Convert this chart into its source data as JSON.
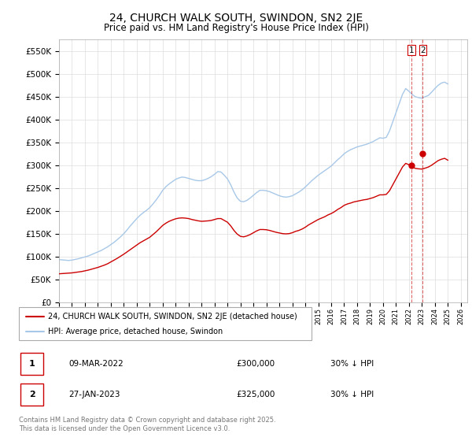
{
  "title": "24, CHURCH WALK SOUTH, SWINDON, SN2 2JE",
  "subtitle": "Price paid vs. HM Land Registry's House Price Index (HPI)",
  "title_fontsize": 10,
  "subtitle_fontsize": 8.5,
  "background_color": "#ffffff",
  "grid_color": "#dddddd",
  "hpi_color": "#a8c8e8",
  "price_color": "#cc0000",
  "vline_color": "#cc0000",
  "ylim": [
    0,
    575000
  ],
  "yticks": [
    0,
    50000,
    100000,
    150000,
    200000,
    250000,
    300000,
    350000,
    400000,
    450000,
    500000,
    550000
  ],
  "ytick_labels": [
    "£0",
    "£50K",
    "£100K",
    "£150K",
    "£200K",
    "£250K",
    "£300K",
    "£350K",
    "£400K",
    "£450K",
    "£500K",
    "£550K"
  ],
  "xmin": 1995.0,
  "xmax": 2026.5,
  "xticks": [
    1995,
    1996,
    1997,
    1998,
    1999,
    2000,
    2001,
    2002,
    2003,
    2004,
    2005,
    2006,
    2007,
    2008,
    2009,
    2010,
    2011,
    2012,
    2013,
    2014,
    2015,
    2016,
    2017,
    2018,
    2019,
    2020,
    2021,
    2022,
    2023,
    2024,
    2025,
    2026
  ],
  "transaction1_x": 2022.185,
  "transaction1_y": 300000,
  "transaction1_label": "1",
  "transaction2_x": 2023.07,
  "transaction2_y": 325000,
  "transaction2_label": "2",
  "legend_entries": [
    "24, CHURCH WALK SOUTH, SWINDON, SN2 2JE (detached house)",
    "HPI: Average price, detached house, Swindon"
  ],
  "table_rows": [
    {
      "num": "1",
      "date": "09-MAR-2022",
      "price": "£300,000",
      "note": "30% ↓ HPI"
    },
    {
      "num": "2",
      "date": "27-JAN-2023",
      "price": "£325,000",
      "note": "30% ↓ HPI"
    }
  ],
  "footer": "Contains HM Land Registry data © Crown copyright and database right 2025.\nThis data is licensed under the Open Government Licence v3.0.",
  "hpi_x": [
    1995.0,
    1995.25,
    1995.5,
    1995.75,
    1996.0,
    1996.25,
    1996.5,
    1996.75,
    1997.0,
    1997.25,
    1997.5,
    1997.75,
    1998.0,
    1998.25,
    1998.5,
    1998.75,
    1999.0,
    1999.25,
    1999.5,
    1999.75,
    2000.0,
    2000.25,
    2000.5,
    2000.75,
    2001.0,
    2001.25,
    2001.5,
    2001.75,
    2002.0,
    2002.25,
    2002.5,
    2002.75,
    2003.0,
    2003.25,
    2003.5,
    2003.75,
    2004.0,
    2004.25,
    2004.5,
    2004.75,
    2005.0,
    2005.25,
    2005.5,
    2005.75,
    2006.0,
    2006.25,
    2006.5,
    2006.75,
    2007.0,
    2007.25,
    2007.5,
    2007.75,
    2008.0,
    2008.25,
    2008.5,
    2008.75,
    2009.0,
    2009.25,
    2009.5,
    2009.75,
    2010.0,
    2010.25,
    2010.5,
    2010.75,
    2011.0,
    2011.25,
    2011.5,
    2011.75,
    2012.0,
    2012.25,
    2012.5,
    2012.75,
    2013.0,
    2013.25,
    2013.5,
    2013.75,
    2014.0,
    2014.25,
    2014.5,
    2014.75,
    2015.0,
    2015.25,
    2015.5,
    2015.75,
    2016.0,
    2016.25,
    2016.5,
    2016.75,
    2017.0,
    2017.25,
    2017.5,
    2017.75,
    2018.0,
    2018.25,
    2018.5,
    2018.75,
    2019.0,
    2019.25,
    2019.5,
    2019.75,
    2020.0,
    2020.25,
    2020.5,
    2020.75,
    2021.0,
    2021.25,
    2021.5,
    2021.75,
    2022.0,
    2022.25,
    2022.5,
    2022.75,
    2023.0,
    2023.25,
    2023.5,
    2023.75,
    2024.0,
    2024.25,
    2024.5,
    2024.75,
    2025.0
  ],
  "hpi_y": [
    93000,
    92500,
    91800,
    91200,
    92000,
    93500,
    95000,
    97000,
    99000,
    101000,
    104000,
    107000,
    110000,
    113000,
    117000,
    121000,
    126000,
    131000,
    137000,
    143000,
    150000,
    158000,
    167000,
    175000,
    183000,
    190000,
    196000,
    201000,
    207000,
    215000,
    224000,
    234000,
    245000,
    253000,
    259000,
    264000,
    269000,
    272000,
    274000,
    273000,
    271000,
    269000,
    267000,
    266000,
    266000,
    268000,
    271000,
    275000,
    280000,
    286000,
    285000,
    278000,
    270000,
    257000,
    241000,
    228000,
    221000,
    220000,
    223000,
    228000,
    234000,
    240000,
    245000,
    245000,
    244000,
    242000,
    239000,
    236000,
    233000,
    231000,
    230000,
    231000,
    233000,
    237000,
    241000,
    246000,
    252000,
    259000,
    266000,
    272000,
    278000,
    283000,
    288000,
    293000,
    298000,
    305000,
    312000,
    318000,
    325000,
    330000,
    334000,
    337000,
    340000,
    342000,
    344000,
    346000,
    349000,
    352000,
    356000,
    360000,
    359000,
    361000,
    375000,
    395000,
    415000,
    435000,
    455000,
    468000,
    462000,
    455000,
    450000,
    448000,
    447000,
    450000,
    453000,
    460000,
    468000,
    475000,
    480000,
    482000,
    478000
  ],
  "price_x": [
    1995.0,
    1995.25,
    1995.5,
    1995.75,
    1996.0,
    1996.25,
    1996.5,
    1996.75,
    1997.0,
    1997.25,
    1997.5,
    1997.75,
    1998.0,
    1998.25,
    1998.5,
    1998.75,
    1999.0,
    1999.25,
    1999.5,
    1999.75,
    2000.0,
    2000.25,
    2000.5,
    2000.75,
    2001.0,
    2001.25,
    2001.5,
    2001.75,
    2002.0,
    2002.25,
    2002.5,
    2002.75,
    2003.0,
    2003.25,
    2003.5,
    2003.75,
    2004.0,
    2004.25,
    2004.5,
    2004.75,
    2005.0,
    2005.25,
    2005.5,
    2005.75,
    2006.0,
    2006.25,
    2006.5,
    2006.75,
    2007.0,
    2007.25,
    2007.5,
    2007.75,
    2008.0,
    2008.25,
    2008.5,
    2008.75,
    2009.0,
    2009.25,
    2009.5,
    2009.75,
    2010.0,
    2010.25,
    2010.5,
    2010.75,
    2011.0,
    2011.25,
    2011.5,
    2011.75,
    2012.0,
    2012.25,
    2012.5,
    2012.75,
    2013.0,
    2013.25,
    2013.5,
    2013.75,
    2014.0,
    2014.25,
    2014.5,
    2014.75,
    2015.0,
    2015.25,
    2015.5,
    2015.75,
    2016.0,
    2016.25,
    2016.5,
    2016.75,
    2017.0,
    2017.25,
    2017.5,
    2017.75,
    2018.0,
    2018.25,
    2018.5,
    2018.75,
    2019.0,
    2019.25,
    2019.5,
    2019.75,
    2020.0,
    2020.25,
    2020.5,
    2020.75,
    2021.0,
    2021.25,
    2021.5,
    2021.75,
    2022.0,
    2022.25,
    2022.5,
    2022.75,
    2023.0,
    2023.25,
    2023.5,
    2023.75,
    2024.0,
    2024.25,
    2024.5,
    2024.75,
    2025.0
  ],
  "price_y": [
    62000,
    62500,
    63000,
    63500,
    64000,
    65000,
    66000,
    67000,
    68500,
    70000,
    72000,
    74000,
    76000,
    78500,
    81000,
    84000,
    88000,
    92000,
    96000,
    100500,
    105000,
    110000,
    115000,
    120000,
    125000,
    130000,
    134000,
    138000,
    142000,
    148000,
    154000,
    161000,
    168000,
    173000,
    177000,
    180000,
    182500,
    184000,
    184500,
    184000,
    183000,
    181000,
    179500,
    178000,
    177000,
    177500,
    178000,
    179000,
    181000,
    183000,
    183000,
    179000,
    175000,
    167000,
    157000,
    149000,
    144000,
    143000,
    145000,
    148000,
    152000,
    156000,
    159000,
    159000,
    158500,
    157000,
    155000,
    153000,
    151500,
    150000,
    149500,
    150000,
    152000,
    155000,
    157000,
    160000,
    164000,
    169000,
    173000,
    177000,
    181000,
    184000,
    187000,
    191000,
    194000,
    198000,
    203000,
    207000,
    212000,
    215000,
    217000,
    219500,
    221000,
    222500,
    224000,
    225000,
    227000,
    229000,
    232000,
    235000,
    235000,
    236000,
    244000,
    257000,
    270000,
    283000,
    296000,
    304000,
    301000,
    296000,
    293000,
    292000,
    291500,
    293500,
    296000,
    300000,
    305000,
    310000,
    313000,
    315000,
    311000
  ]
}
